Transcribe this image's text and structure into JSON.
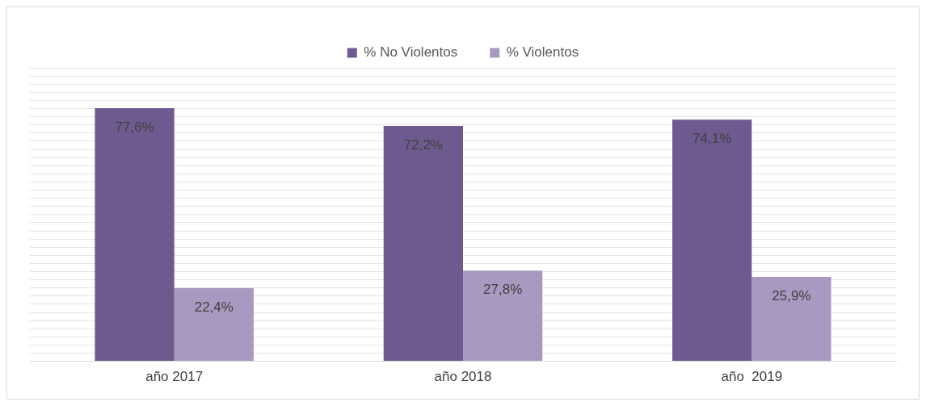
{
  "chart_data": {
    "type": "bar",
    "categories": [
      "año 2017",
      "año 2018",
      "año  2019"
    ],
    "series": [
      {
        "name": "% No Violentos",
        "color": "#6f5a8f",
        "values": [
          77.6,
          72.2,
          74.1
        ],
        "value_labels": [
          "77,6%",
          "72,2%",
          "74,1%"
        ]
      },
      {
        "name": "% Violentos",
        "color": "#a899c0",
        "values": [
          22.4,
          27.8,
          25.9
        ],
        "value_labels": [
          "22,4%",
          "27,8%",
          "25,9%"
        ]
      }
    ],
    "ylim": [
      0,
      90
    ],
    "yticks": [
      {
        "value": 0,
        "label": null
      },
      {
        "value": 2.5,
        "label": null
      },
      {
        "value": 5,
        "label": null
      },
      {
        "value": 7.5,
        "label": null
      },
      {
        "value": 10,
        "label": null
      },
      {
        "value": 12.5,
        "label": null
      },
      {
        "value": 15,
        "label": null
      },
      {
        "value": 17.5,
        "label": null
      },
      {
        "value": 20,
        "label": null
      },
      {
        "value": 22.5,
        "label": null
      },
      {
        "value": 25,
        "label": null
      },
      {
        "value": 27.5,
        "label": null
      },
      {
        "value": 30,
        "label": null
      },
      {
        "value": 32.5,
        "label": null
      },
      {
        "value": 35,
        "label": null
      },
      {
        "value": 37.5,
        "label": null
      },
      {
        "value": 40,
        "label": null
      },
      {
        "value": 42.5,
        "label": null
      },
      {
        "value": 45,
        "label": null
      },
      {
        "value": 47.5,
        "label": null
      },
      {
        "value": 50,
        "label": null
      },
      {
        "value": 52.5,
        "label": null
      },
      {
        "value": 55,
        "label": null
      },
      {
        "value": 57.5,
        "label": null
      },
      {
        "value": 60,
        "label": null
      },
      {
        "value": 62.5,
        "label": null
      },
      {
        "value": 65,
        "label": null
      },
      {
        "value": 67.5,
        "label": null
      },
      {
        "value": 70,
        "label": null
      },
      {
        "value": 72.5,
        "label": null
      },
      {
        "value": 75,
        "label": null
      },
      {
        "value": 77.5,
        "label": null
      },
      {
        "value": 80,
        "label": null
      },
      {
        "value": 82.5,
        "label": null
      },
      {
        "value": 85,
        "label": null
      },
      {
        "value": 87.5,
        "label": null
      },
      {
        "value": 90,
        "label": null
      }
    ],
    "tick_labels": "x",
    "grid": "y",
    "legend": "top"
  }
}
